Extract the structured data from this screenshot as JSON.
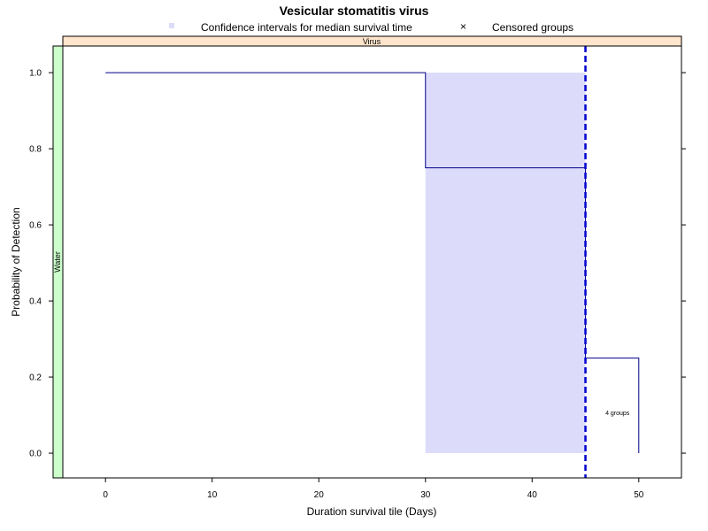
{
  "chart_data": {
    "type": "line",
    "title": "Vesicular stomatitis virus",
    "xlabel": "Duration survival tile (Days)",
    "ylabel": "Probability of Detection",
    "xlim": [
      -4,
      54
    ],
    "ylim": [
      -0.065,
      1.07
    ],
    "xticks": [
      0,
      10,
      20,
      30,
      40,
      50
    ],
    "yticks": [
      0.0,
      0.2,
      0.4,
      0.6,
      0.8,
      1.0
    ],
    "ytick_labels": [
      "0.0",
      "0.2",
      "0.4",
      "0.6",
      "0.8",
      "1.0"
    ],
    "legend": {
      "position": "top",
      "entries": [
        {
          "label": "Confidence intervals for median survival time",
          "symbol": "square",
          "color": "#dcdcfa"
        },
        {
          "label": "Censored groups",
          "symbol": "x",
          "color": "#000000"
        }
      ]
    },
    "strips": {
      "top": "Virus",
      "left": "Water"
    },
    "series": [
      {
        "style": "step",
        "color": "#00008b",
        "x": [
          0,
          30,
          30,
          45,
          45,
          50,
          50
        ],
        "y": [
          1.0,
          1.0,
          0.75,
          0.75,
          0.25,
          0.25,
          0.0
        ]
      }
    ],
    "confidence_band": {
      "x0": 30,
      "x1": 45,
      "y0": 0.0,
      "y1": 1.0,
      "color": "#dcdcfa"
    },
    "median_line": {
      "x": 45,
      "style": "dashed",
      "color": "#0000cd"
    },
    "annotations": [
      {
        "text": "4 groups",
        "x": 48,
        "y": 0.1
      }
    ],
    "grid": false
  }
}
